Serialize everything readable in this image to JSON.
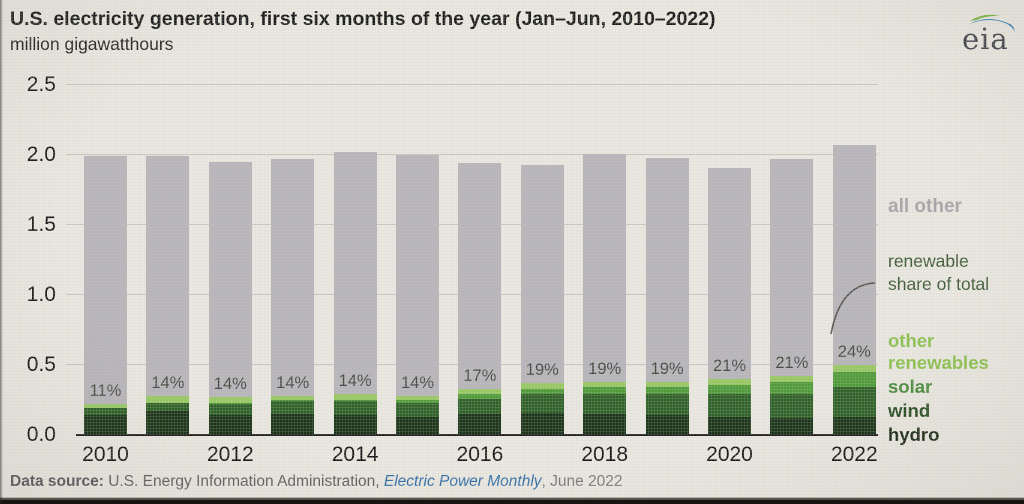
{
  "header": {
    "title": "U.S. electricity generation, first six months of the year (Jan–Jun, 2010–2022)",
    "subtitle": "million gigawatthours",
    "logo_text": "eia"
  },
  "legend": {
    "all_other": "all other",
    "renewable_share": "renewable share of total",
    "other_renewables": "other renewables",
    "solar": "solar",
    "wind": "wind",
    "hydro": "hydro"
  },
  "footer": {
    "source_prefix": "Data source:",
    "source_body": " U.S. Energy Information Administration, ",
    "source_publication": "Electric Power Monthly",
    "source_suffix": ", June 2022"
  },
  "colors": {
    "hydro": "#1c3519",
    "wind": "#2f6128",
    "solar": "#4f9a39",
    "other_renewables": "#97c862",
    "all_other": "#b7b4ba",
    "legend_all_other_text": "#a7a4a9",
    "legend_renew_share_text": "#3f5a37",
    "legend_other_renewables_text": "#8cc14f",
    "legend_solar_text": "#4a8a3a",
    "legend_wind_text": "#274d20",
    "legend_hydro_text": "#1c2a14",
    "pct_label_text": "#444b43",
    "gridline": "#c9c6bf",
    "axis": "#1a1a18",
    "link_blue": "#2f6da8"
  },
  "chart_data": {
    "type": "bar",
    "stacked": true,
    "title": "U.S. electricity generation, first six months of the year (Jan–Jun, 2010–2022)",
    "ylabel": "million gigawatthours",
    "x": [
      2010,
      2011,
      2012,
      2013,
      2014,
      2015,
      2016,
      2017,
      2018,
      2019,
      2020,
      2021,
      2022
    ],
    "totals": [
      1.99,
      1.99,
      1.95,
      1.97,
      2.02,
      2.0,
      1.94,
      1.93,
      2.01,
      1.98,
      1.91,
      1.97,
      2.07
    ],
    "series": [
      {
        "name": "hydro",
        "color_key": "hydro",
        "values": [
          0.14,
          0.17,
          0.14,
          0.15,
          0.14,
          0.13,
          0.15,
          0.16,
          0.15,
          0.14,
          0.13,
          0.12,
          0.13
        ]
      },
      {
        "name": "wind",
        "color_key": "wind",
        "values": [
          0.05,
          0.06,
          0.08,
          0.09,
          0.1,
          0.1,
          0.11,
          0.13,
          0.14,
          0.15,
          0.16,
          0.17,
          0.21
        ]
      },
      {
        "name": "solar",
        "color_key": "solar",
        "values": [
          0.0,
          0.0,
          0.01,
          0.01,
          0.01,
          0.02,
          0.03,
          0.04,
          0.05,
          0.05,
          0.07,
          0.09,
          0.11
        ]
      },
      {
        "name": "other renewables",
        "color_key": "other_renewables",
        "values": [
          0.03,
          0.05,
          0.04,
          0.03,
          0.04,
          0.03,
          0.04,
          0.04,
          0.04,
          0.04,
          0.04,
          0.04,
          0.05
        ]
      },
      {
        "name": "all other",
        "color_key": "all_other",
        "values": "remainder-of-total"
      }
    ],
    "renewable_share_labels": [
      "11%",
      "14%",
      "14%",
      "14%",
      "14%",
      "14%",
      "17%",
      "19%",
      "19%",
      "19%",
      "21%",
      "21%",
      "24%"
    ],
    "annotation": {
      "text": "renewable share of total",
      "points_to": "24%"
    },
    "ylim": [
      0,
      2.5
    ],
    "yticks": [
      0.0,
      0.5,
      1.0,
      1.5,
      2.0,
      2.5
    ],
    "ytick_labels": [
      "0.0",
      "0.5",
      "1.0",
      "1.5",
      "2.0",
      "2.5"
    ],
    "xtick_labels": [
      "2010",
      "2012",
      "2014",
      "2016",
      "2018",
      "2020",
      "2022"
    ],
    "grid": "horizontal",
    "legend_position": "right"
  }
}
